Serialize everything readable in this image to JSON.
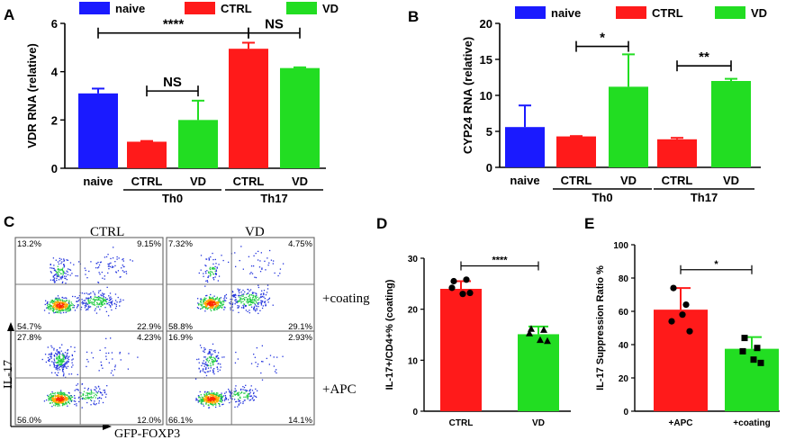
{
  "panels": {
    "A": "A",
    "B": "B",
    "C": "C",
    "D": "D",
    "E": "E"
  },
  "colors": {
    "naive": "#1a1aff",
    "ctrl": "#ff1a1a",
    "vd": "#22dd22",
    "axis": "#000000"
  },
  "chart_data": [
    {
      "id": "A",
      "type": "bar",
      "ylabel": "VDR RNA (relative)",
      "ylim": [
        0,
        6
      ],
      "yticks": [
        0,
        2,
        4,
        6
      ],
      "legend": [
        "naive",
        "CTRL",
        "VD"
      ],
      "legend_position": "top",
      "bars": [
        {
          "group": "naive",
          "label": "naive",
          "value": 3.1,
          "err": 0.2
        },
        {
          "group": "Th0",
          "label": "CTRL",
          "value": 1.1,
          "err": 0.03
        },
        {
          "group": "Th0",
          "label": "VD",
          "value": 2.0,
          "err": 0.8
        },
        {
          "group": "Th17",
          "label": "CTRL",
          "value": 4.95,
          "err": 0.25
        },
        {
          "group": "Th17",
          "label": "VD",
          "value": 4.15,
          "err": 0.03
        }
      ],
      "group_labels": [
        "Th0",
        "Th17"
      ],
      "significance": [
        {
          "from": 0,
          "to": 3,
          "text": "****",
          "y": 5.6
        },
        {
          "from": 1,
          "to": 2,
          "text": "NS",
          "y": 3.2
        },
        {
          "from": 3,
          "to": 4,
          "text": "NS",
          "y": 5.6
        }
      ]
    },
    {
      "id": "B",
      "type": "bar",
      "ylabel": "CYP24 RNA (relative)",
      "ylim": [
        0,
        20
      ],
      "yticks": [
        0,
        5,
        10,
        15,
        20
      ],
      "legend": [
        "naive",
        "CTRL",
        "VD"
      ],
      "legend_position": "top",
      "bars": [
        {
          "group": "naive",
          "label": "naive",
          "value": 5.6,
          "err": 3.0
        },
        {
          "group": "Th0",
          "label": "CTRL",
          "value": 4.3,
          "err": 0.05
        },
        {
          "group": "Th0",
          "label": "VD",
          "value": 11.2,
          "err": 4.5
        },
        {
          "group": "Th17",
          "label": "CTRL",
          "value": 3.9,
          "err": 0.2
        },
        {
          "group": "Th17",
          "label": "VD",
          "value": 12.0,
          "err": 0.3
        }
      ],
      "group_labels": [
        "Th0",
        "Th17"
      ],
      "significance": [
        {
          "from": 1,
          "to": 2,
          "text": "*",
          "y": 16.8
        },
        {
          "from": 3,
          "to": 4,
          "text": "**",
          "y": 14.1
        }
      ]
    },
    {
      "id": "D",
      "type": "bar",
      "ylabel": "IL-17+/CD4+% (coating)",
      "ylim": [
        0,
        30
      ],
      "yticks": [
        0,
        10,
        20,
        30
      ],
      "categories": [
        "CTRL",
        "VD"
      ],
      "bars": [
        {
          "label": "CTRL",
          "value": 24.0,
          "err": 1.5,
          "points": [
            25.5,
            25.8,
            24.2,
            23.0,
            23.2
          ],
          "marker": "circle"
        },
        {
          "label": "VD",
          "value": 15.1,
          "err": 1.5,
          "points": [
            16.2,
            16.0,
            15.3,
            14.0,
            13.8
          ],
          "marker": "triangle"
        }
      ],
      "significance": [
        {
          "from": 0,
          "to": 1,
          "text": "****",
          "y": 28.5
        }
      ]
    },
    {
      "id": "E",
      "type": "bar",
      "ylabel": "IL-17 Suppression Ratio %",
      "ylim": [
        0,
        100
      ],
      "yticks": [
        0,
        20,
        40,
        60,
        80,
        100
      ],
      "categories": [
        "+APC",
        "+coating"
      ],
      "bars": [
        {
          "label": "+APC",
          "value": 61,
          "err": 13,
          "points": [
            74,
            64,
            54,
            58,
            48
          ],
          "marker": "circle"
        },
        {
          "label": "+coating",
          "value": 37.5,
          "err": 7,
          "points": [
            44,
            38,
            36,
            31,
            29
          ],
          "marker": "square"
        }
      ],
      "significance": [
        {
          "from": 0,
          "to": 1,
          "text": "*",
          "y": 85
        }
      ]
    }
  ],
  "flow": {
    "col_labels": [
      "CTRL",
      "VD"
    ],
    "row_labels": [
      "+coating",
      "+APC"
    ],
    "ylabel": "IL-17",
    "xlabel": "GFP-FOXP3",
    "quadrants": [
      {
        "ul": "13.2%",
        "ur": "9.15%",
        "ll": "54.7%",
        "lr": "22.9%"
      },
      {
        "ul": "7.32%",
        "ur": "4.75%",
        "ll": "58.8%",
        "lr": "29.1%"
      },
      {
        "ul": "27.8%",
        "ur": "4.23%",
        "ll": "56.0%",
        "lr": "12.0%"
      },
      {
        "ul": "16.9%",
        "ur": "2.93%",
        "ll": "66.1%",
        "lr": "14.1%"
      }
    ]
  }
}
